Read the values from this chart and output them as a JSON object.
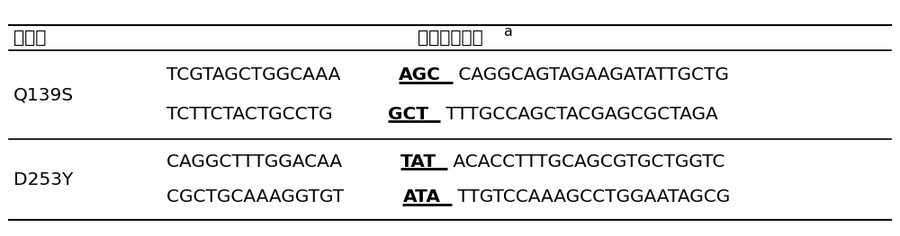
{
  "header_col1": "突变体",
  "header_col2": "上、下游引物",
  "header_superscript": "a",
  "rows": [
    {
      "mutant": "Q139S",
      "seq1_before": "TCGTAGCTGGCAAA ",
      "seq1_bold": "AGC",
      "seq1_after": " CAGGCAGTAGAAGATATTGCTG",
      "seq2_before": "TCTTCTACTGCCTG ",
      "seq2_bold": "GCT",
      "seq2_after": " TTTGCCAGCTACGAGCGCTAGA"
    },
    {
      "mutant": "D253Y",
      "seq1_before": "CAGGCTTTGGACAA ",
      "seq1_bold": "TAT",
      "seq1_after": " ACACCTTTGCAGCGTGCTGGTC",
      "seq2_before": "CGCTGCAAAGGTGT ",
      "seq2_bold": "ATA",
      "seq2_after": " TTGTCCAAAGCCTGGAATAGCG"
    }
  ],
  "bg_color": "#ffffff",
  "text_color": "#000000",
  "seq_font_size": 14.5,
  "label_font_size": 14.5,
  "header_font_size": 14.5,
  "fig_width": 10.0,
  "fig_height": 2.63,
  "dpi": 100
}
